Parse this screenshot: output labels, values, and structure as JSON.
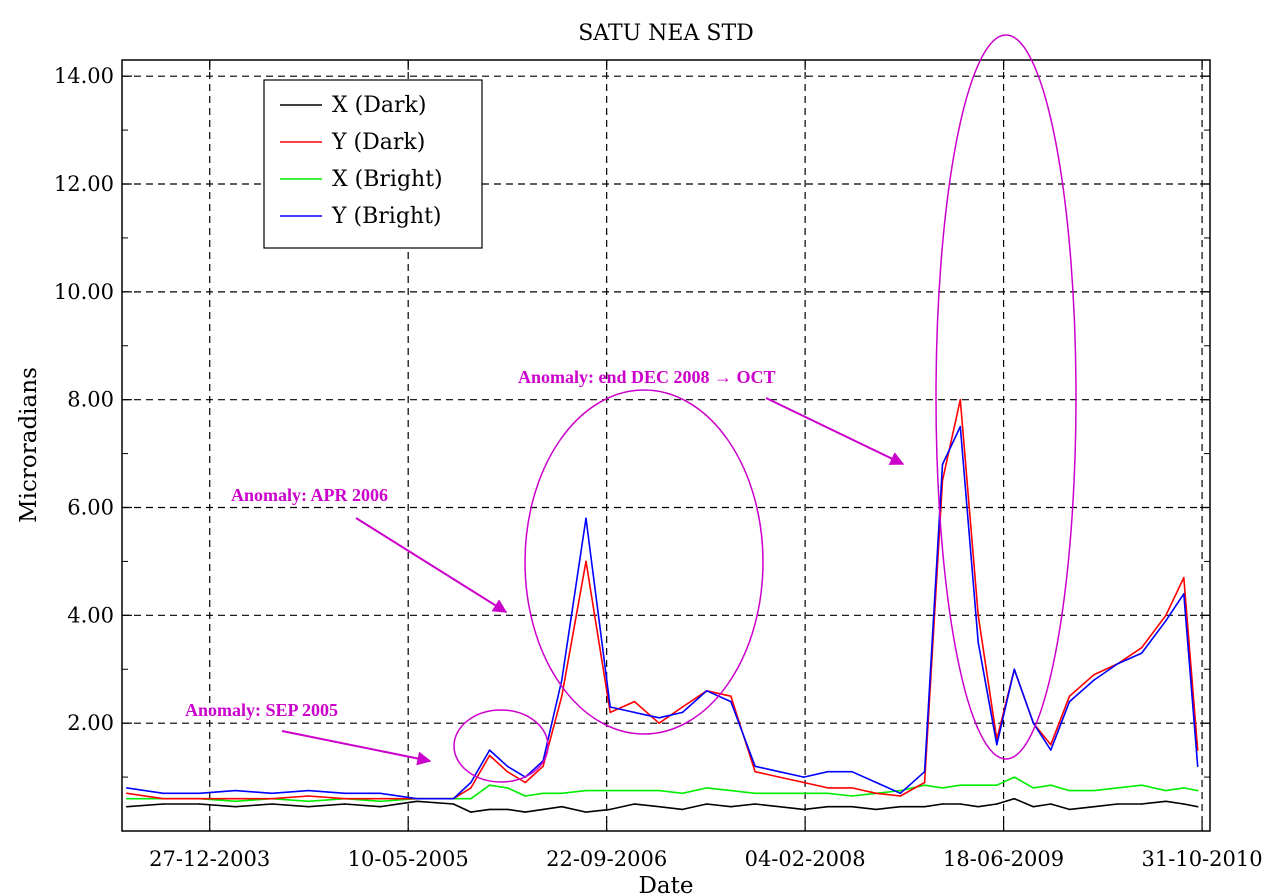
{
  "chart_data": {
    "type": "line",
    "title": "SATU NEA STD",
    "xlabel": "Date",
    "ylabel": "Microradians",
    "x_ticks": [
      "27-12-2003",
      "10-05-2005",
      "22-09-2006",
      "04-02-2008",
      "18-06-2009",
      "31-10-2010"
    ],
    "y_ticks": [
      "2.00",
      "4.00",
      "6.00",
      "8.00",
      "10.00",
      "12.00",
      "14.00"
    ],
    "ylim": [
      0,
      14.3
    ],
    "xlim": [
      "2003-05-20",
      "2010-11-20"
    ],
    "grid": true,
    "legend_position": "top-left",
    "x": [
      "2003-06-01",
      "2003-09-01",
      "2003-12-01",
      "2004-03-01",
      "2004-06-01",
      "2004-09-01",
      "2004-12-01",
      "2005-03-01",
      "2005-06-01",
      "2005-09-01",
      "2005-10-15",
      "2005-12-01",
      "2006-01-15",
      "2006-03-01",
      "2006-04-15",
      "2006-06-01",
      "2006-08-01",
      "2006-10-01",
      "2006-12-01",
      "2007-02-01",
      "2007-04-01",
      "2007-06-01",
      "2007-08-01",
      "2007-10-01",
      "2007-12-01",
      "2008-02-01",
      "2008-04-01",
      "2008-06-01",
      "2008-08-01",
      "2008-10-01",
      "2008-12-01",
      "2009-01-15",
      "2009-03-01",
      "2009-04-15",
      "2009-06-01",
      "2009-07-15",
      "2009-09-01",
      "2009-10-15",
      "2009-12-01",
      "2010-02-01",
      "2010-04-01",
      "2010-06-01",
      "2010-08-01",
      "2010-09-15",
      "2010-10-20"
    ],
    "series": [
      {
        "name": "X (Dark)",
        "color": "#000000",
        "values": [
          0.45,
          0.5,
          0.5,
          0.45,
          0.5,
          0.45,
          0.5,
          0.45,
          0.55,
          0.5,
          0.35,
          0.4,
          0.4,
          0.35,
          0.4,
          0.45,
          0.35,
          0.4,
          0.5,
          0.45,
          0.4,
          0.5,
          0.45,
          0.5,
          0.45,
          0.4,
          0.45,
          0.45,
          0.4,
          0.45,
          0.45,
          0.5,
          0.5,
          0.45,
          0.5,
          0.6,
          0.45,
          0.5,
          0.4,
          0.45,
          0.5,
          0.5,
          0.55,
          0.5,
          0.45
        ]
      },
      {
        "name": "Y (Dark)",
        "color": "#ff0000",
        "values": [
          0.7,
          0.6,
          0.6,
          0.6,
          0.6,
          0.65,
          0.6,
          0.6,
          0.6,
          0.6,
          0.8,
          1.4,
          1.1,
          0.9,
          1.2,
          2.5,
          5.0,
          2.2,
          2.4,
          2.0,
          2.3,
          2.6,
          2.5,
          1.1,
          1.0,
          0.9,
          0.8,
          0.8,
          0.7,
          0.65,
          0.9,
          6.5,
          8.0,
          4.0,
          1.7,
          3.0,
          2.0,
          1.6,
          2.5,
          2.9,
          3.1,
          3.4,
          4.0,
          4.7,
          1.5
        ]
      },
      {
        "name": "X (Bright)",
        "color": "#00ee00",
        "values": [
          0.6,
          0.6,
          0.6,
          0.55,
          0.6,
          0.55,
          0.6,
          0.55,
          0.6,
          0.6,
          0.6,
          0.85,
          0.8,
          0.65,
          0.7,
          0.7,
          0.75,
          0.75,
          0.75,
          0.75,
          0.7,
          0.8,
          0.75,
          0.7,
          0.7,
          0.7,
          0.7,
          0.65,
          0.7,
          0.75,
          0.85,
          0.8,
          0.85,
          0.85,
          0.85,
          1.0,
          0.8,
          0.85,
          0.75,
          0.75,
          0.8,
          0.85,
          0.75,
          0.8,
          0.75
        ]
      },
      {
        "name": "Y (Bright)",
        "color": "#0000ff",
        "values": [
          0.8,
          0.7,
          0.7,
          0.75,
          0.7,
          0.75,
          0.7,
          0.7,
          0.6,
          0.6,
          0.9,
          1.5,
          1.2,
          1.0,
          1.3,
          2.8,
          5.8,
          2.3,
          2.2,
          2.1,
          2.2,
          2.6,
          2.4,
          1.2,
          1.1,
          1.0,
          1.1,
          1.1,
          0.9,
          0.7,
          1.1,
          6.8,
          7.5,
          3.5,
          1.6,
          3.0,
          2.0,
          1.5,
          2.4,
          2.8,
          3.1,
          3.3,
          3.9,
          4.4,
          1.2
        ]
      }
    ],
    "annotations": [
      {
        "text": "Anomaly: SEP 2005"
      },
      {
        "text": "Anomaly: APR 2006"
      },
      {
        "text": "Anomaly: end DEC 2008 → OCT"
      }
    ]
  }
}
